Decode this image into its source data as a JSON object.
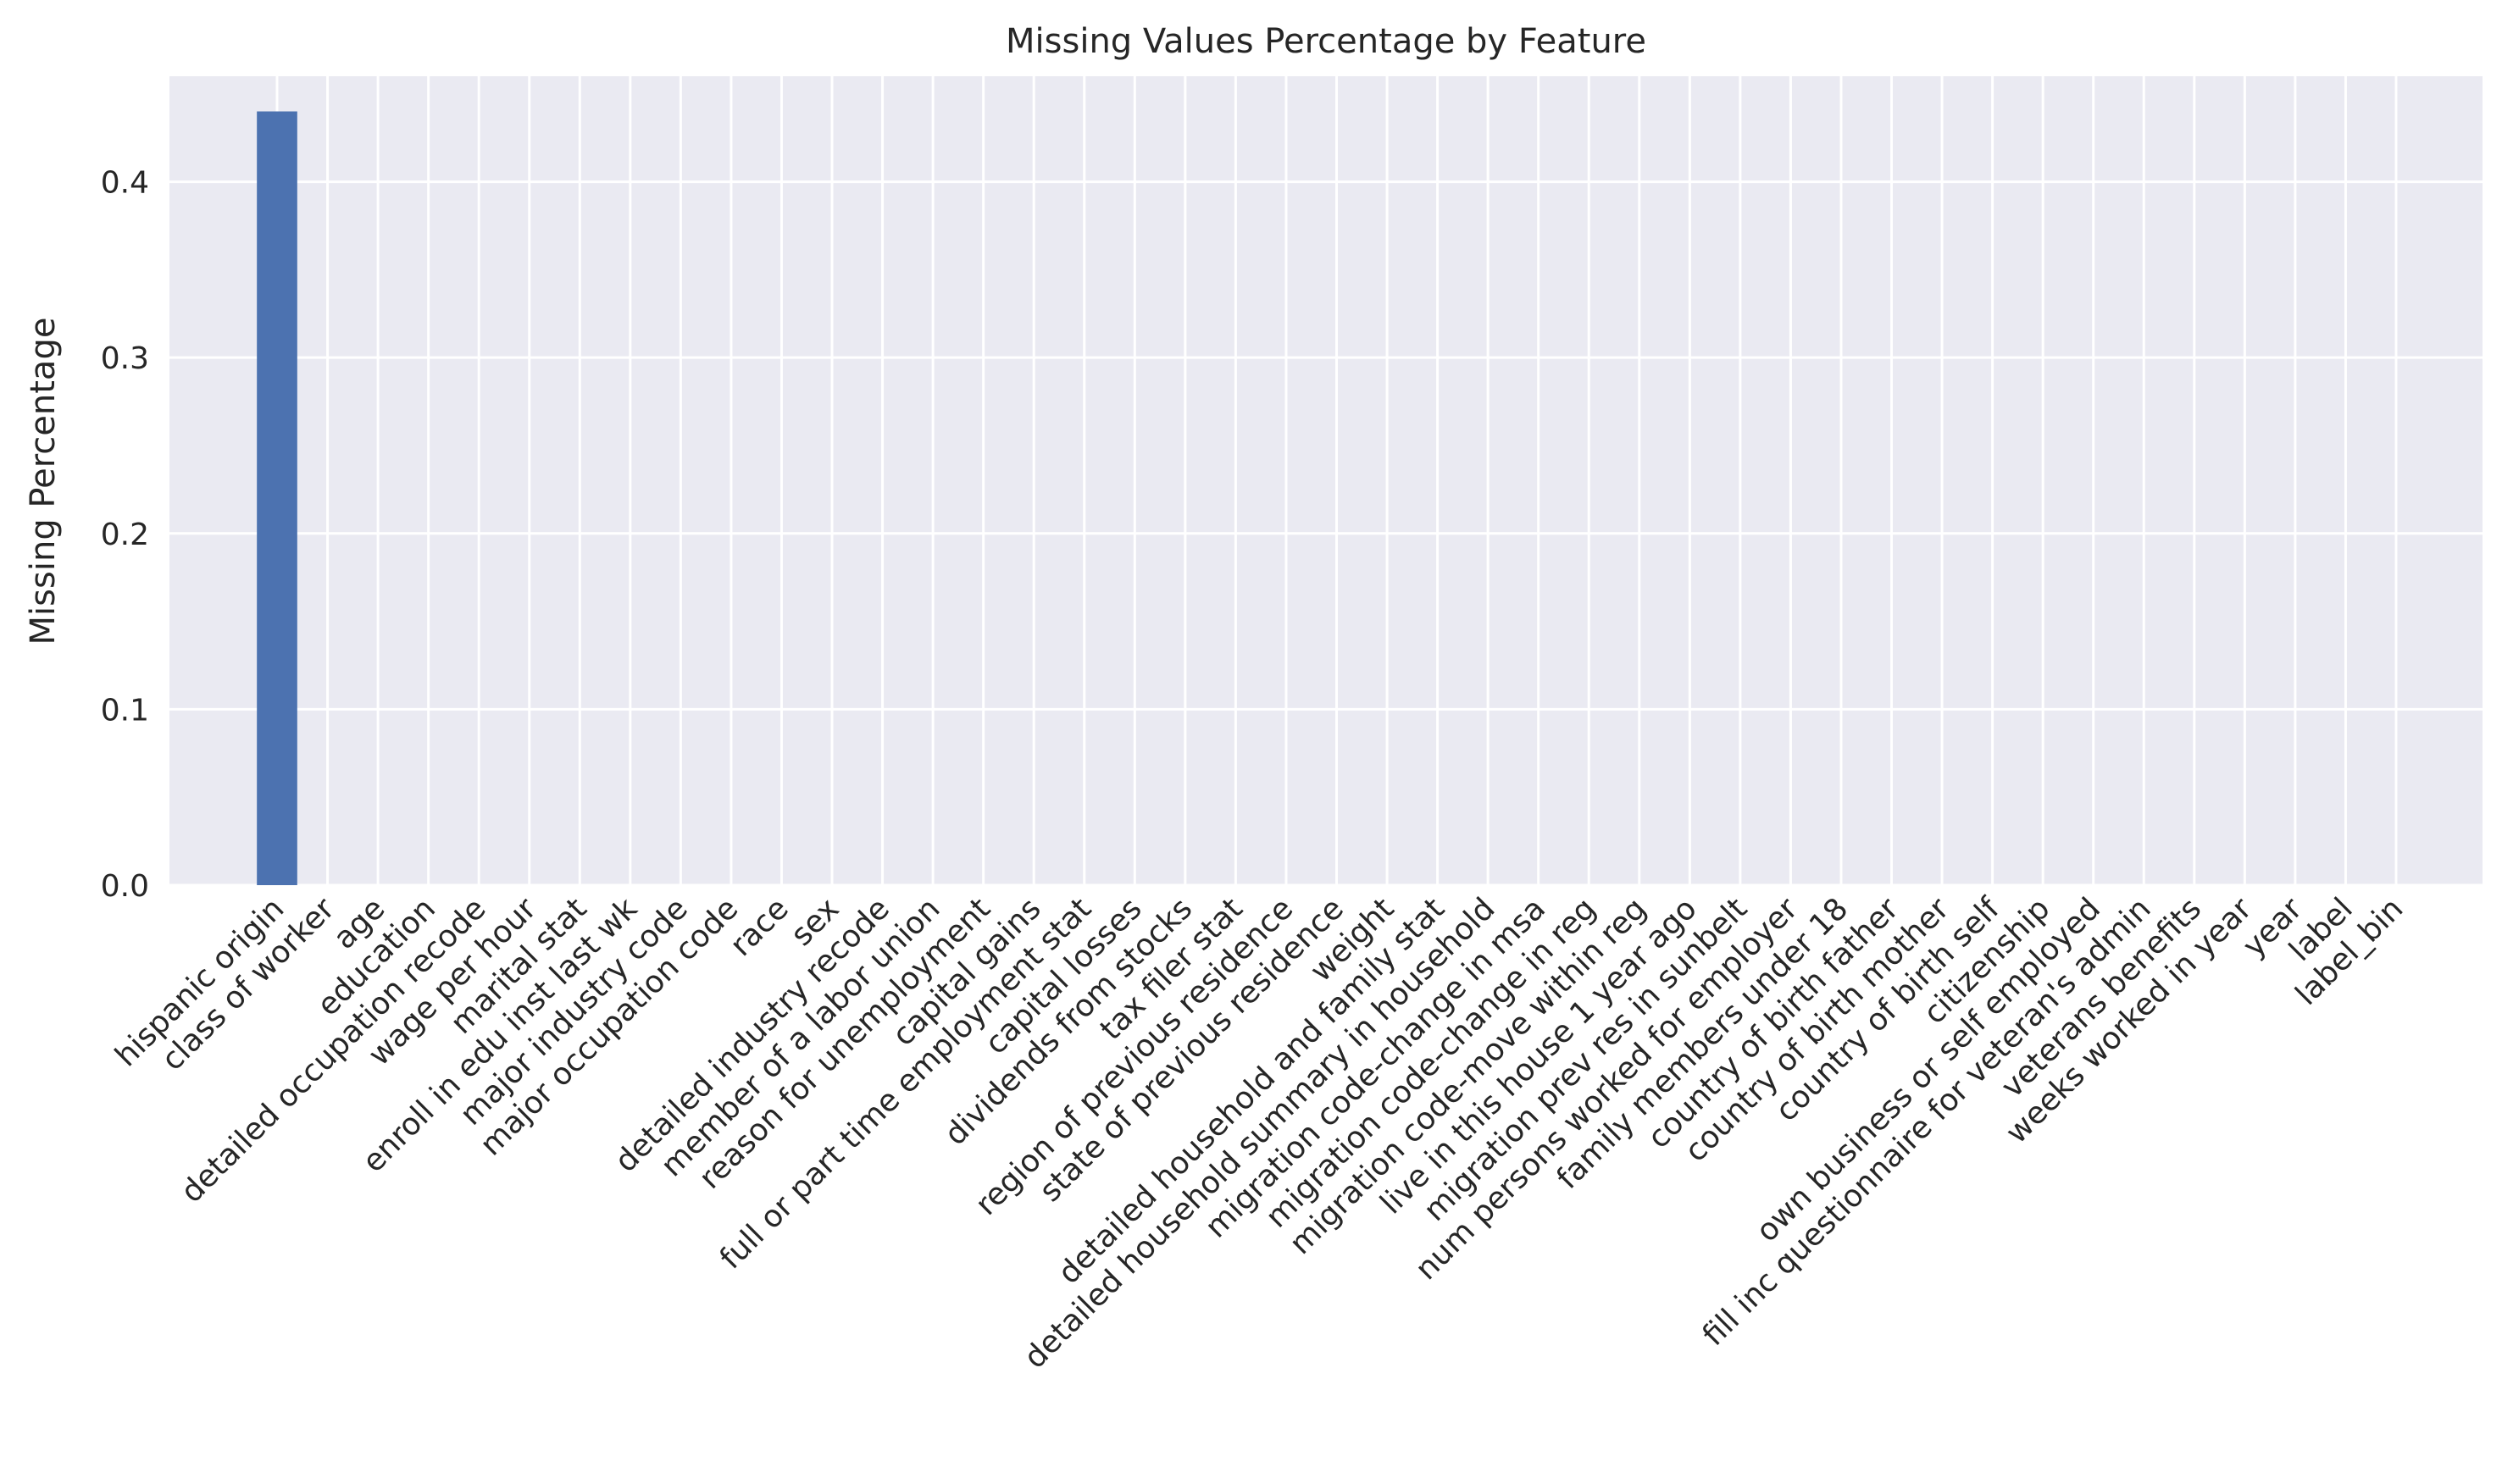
{
  "chart_data": {
    "type": "bar",
    "title": "Missing Values Percentage by Feature",
    "xlabel": "",
    "ylabel": "Missing Percentage",
    "ylim": [
      0,
      0.46
    ],
    "yticks": [
      0.0,
      0.1,
      0.2,
      0.3,
      0.4
    ],
    "ytick_labels": [
      "0.0",
      "0.1",
      "0.2",
      "0.3",
      "0.4"
    ],
    "grid": true,
    "legend": "none",
    "bar_color": "#4c72b0",
    "background_color": "#eaeaf2",
    "grid_color": "#ffffff",
    "categories": [
      "hispanic origin",
      "class of worker",
      "age",
      "education",
      "detailed occupation recode",
      "wage per hour",
      "marital stat",
      "enroll in edu inst last wk",
      "major industry code",
      "major occupation code",
      "race",
      "sex",
      "detailed industry recode",
      "member of a labor union",
      "reason for unemployment",
      "capital gains",
      "full or part time employment stat",
      "capital losses",
      "dividends from stocks",
      "tax filer stat",
      "region of previous residence",
      "state of previous residence",
      "weight",
      "detailed household and family stat",
      "detailed household summary in household",
      "migration code-change in msa",
      "migration code-change in reg",
      "migration code-move within reg",
      "live in this house 1 year ago",
      "migration prev res in sunbelt",
      "num persons worked for employer",
      "family members under 18",
      "country of birth father",
      "country of birth mother",
      "country of birth self",
      "citizenship",
      "own business or self employed",
      "fill inc questionnaire for veteran's admin",
      "veterans benefits",
      "weeks worked in year",
      "year",
      "label",
      "label_bin"
    ],
    "values": [
      0.44,
      0,
      0,
      0,
      0,
      0,
      0,
      0,
      0,
      0,
      0,
      0,
      0,
      0,
      0,
      0,
      0,
      0,
      0,
      0,
      0,
      0,
      0,
      0,
      0,
      0,
      0,
      0,
      0,
      0,
      0,
      0,
      0,
      0,
      0,
      0,
      0,
      0,
      0,
      0,
      0,
      0,
      0
    ]
  }
}
